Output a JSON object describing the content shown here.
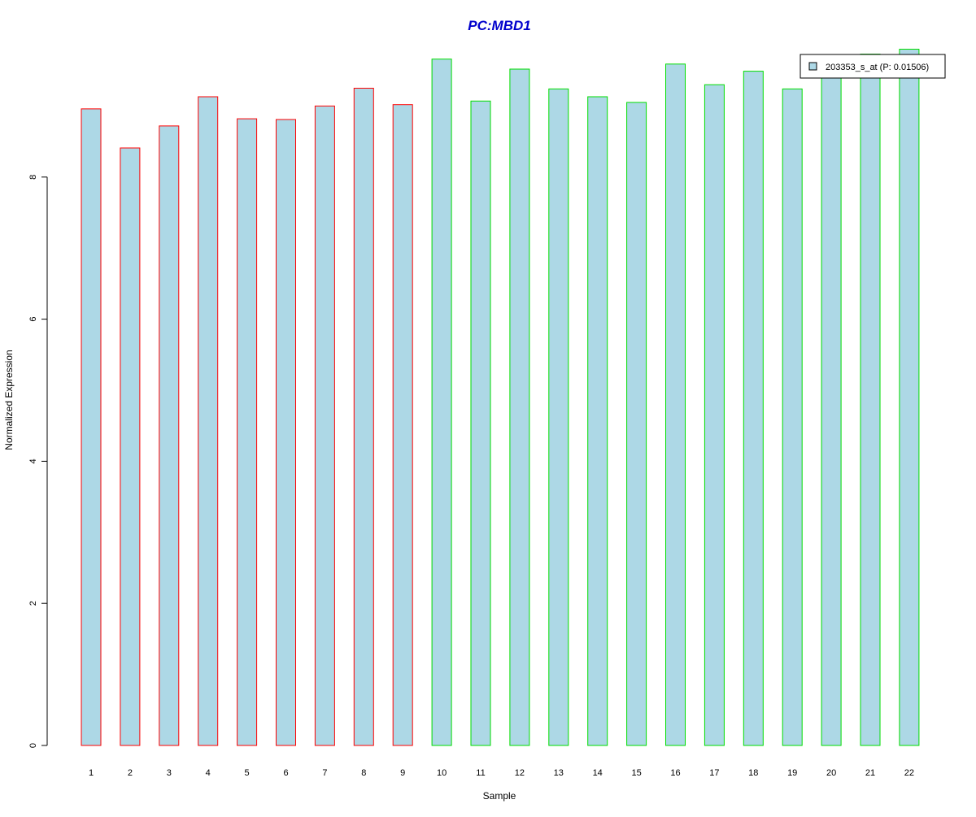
{
  "chart_data": {
    "type": "bar",
    "title": "PC:MBD1",
    "xlabel": "Sample",
    "ylabel": "Normalized Expression",
    "categories": [
      "1",
      "2",
      "3",
      "4",
      "5",
      "6",
      "7",
      "8",
      "9",
      "10",
      "11",
      "12",
      "13",
      "14",
      "15",
      "16",
      "17",
      "18",
      "19",
      "20",
      "21",
      "22"
    ],
    "series": [
      {
        "name": "203353_s_at (P: 0.01506)",
        "values": [
          8.96,
          8.41,
          8.72,
          9.13,
          8.82,
          8.81,
          9.0,
          9.25,
          9.02,
          9.66,
          9.07,
          9.52,
          9.24,
          9.13,
          9.05,
          9.59,
          9.3,
          9.49,
          9.24,
          9.61,
          9.73,
          9.8
        ]
      }
    ],
    "yticks": [
      0,
      2,
      4,
      6,
      8
    ],
    "ylim": [
      0,
      9.8
    ],
    "legend_position": "top-right",
    "grid": false,
    "colors": {
      "title": "#0000cc",
      "bar_fill": "#add8e6",
      "group1_border": "#ff0000",
      "group2_border": "#00dd00",
      "axis": "#000000"
    },
    "border_groups": [
      "group1",
      "group1",
      "group1",
      "group1",
      "group1",
      "group1",
      "group1",
      "group1",
      "group1",
      "group2",
      "group2",
      "group2",
      "group2",
      "group2",
      "group2",
      "group2",
      "group2",
      "group2",
      "group2",
      "group2",
      "group2",
      "group2"
    ]
  }
}
